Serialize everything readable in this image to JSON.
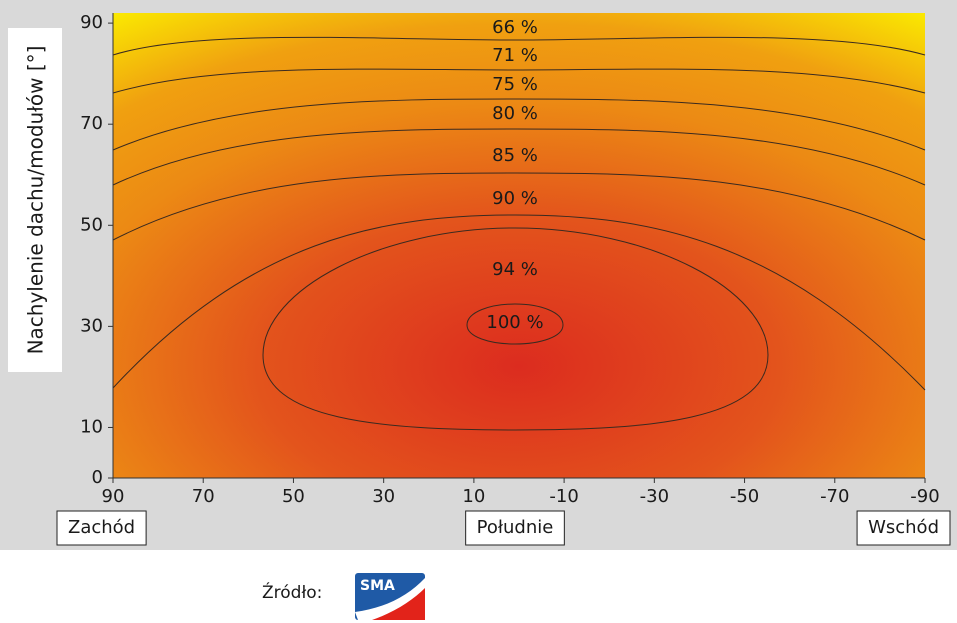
{
  "chart_data": {
    "type": "contour",
    "ylabel": "Nachylenie dachu/modułów [°]",
    "xlim": [
      90,
      -90
    ],
    "xticks": [
      90,
      70,
      50,
      30,
      10,
      -10,
      -30,
      -50,
      -70,
      -90
    ],
    "ylim": [
      0,
      92
    ],
    "yticks": [
      0,
      10,
      30,
      50,
      70,
      90
    ],
    "levels": [
      {
        "value": 66,
        "label": "66 %"
      },
      {
        "value": 71,
        "label": "71 %"
      },
      {
        "value": 75,
        "label": "75 %"
      },
      {
        "value": 80,
        "label": "80 %"
      },
      {
        "value": 85,
        "label": "85 %"
      },
      {
        "value": 90,
        "label": "90 %"
      },
      {
        "value": 94,
        "label": "94 %"
      },
      {
        "value": 100,
        "label": "100 %"
      }
    ],
    "direction_labels": [
      "Zachód",
      "Południe",
      "Wschód"
    ],
    "line_color": "#3a2a20"
  },
  "source_label": "Źródło:",
  "source_logo": "SMA"
}
